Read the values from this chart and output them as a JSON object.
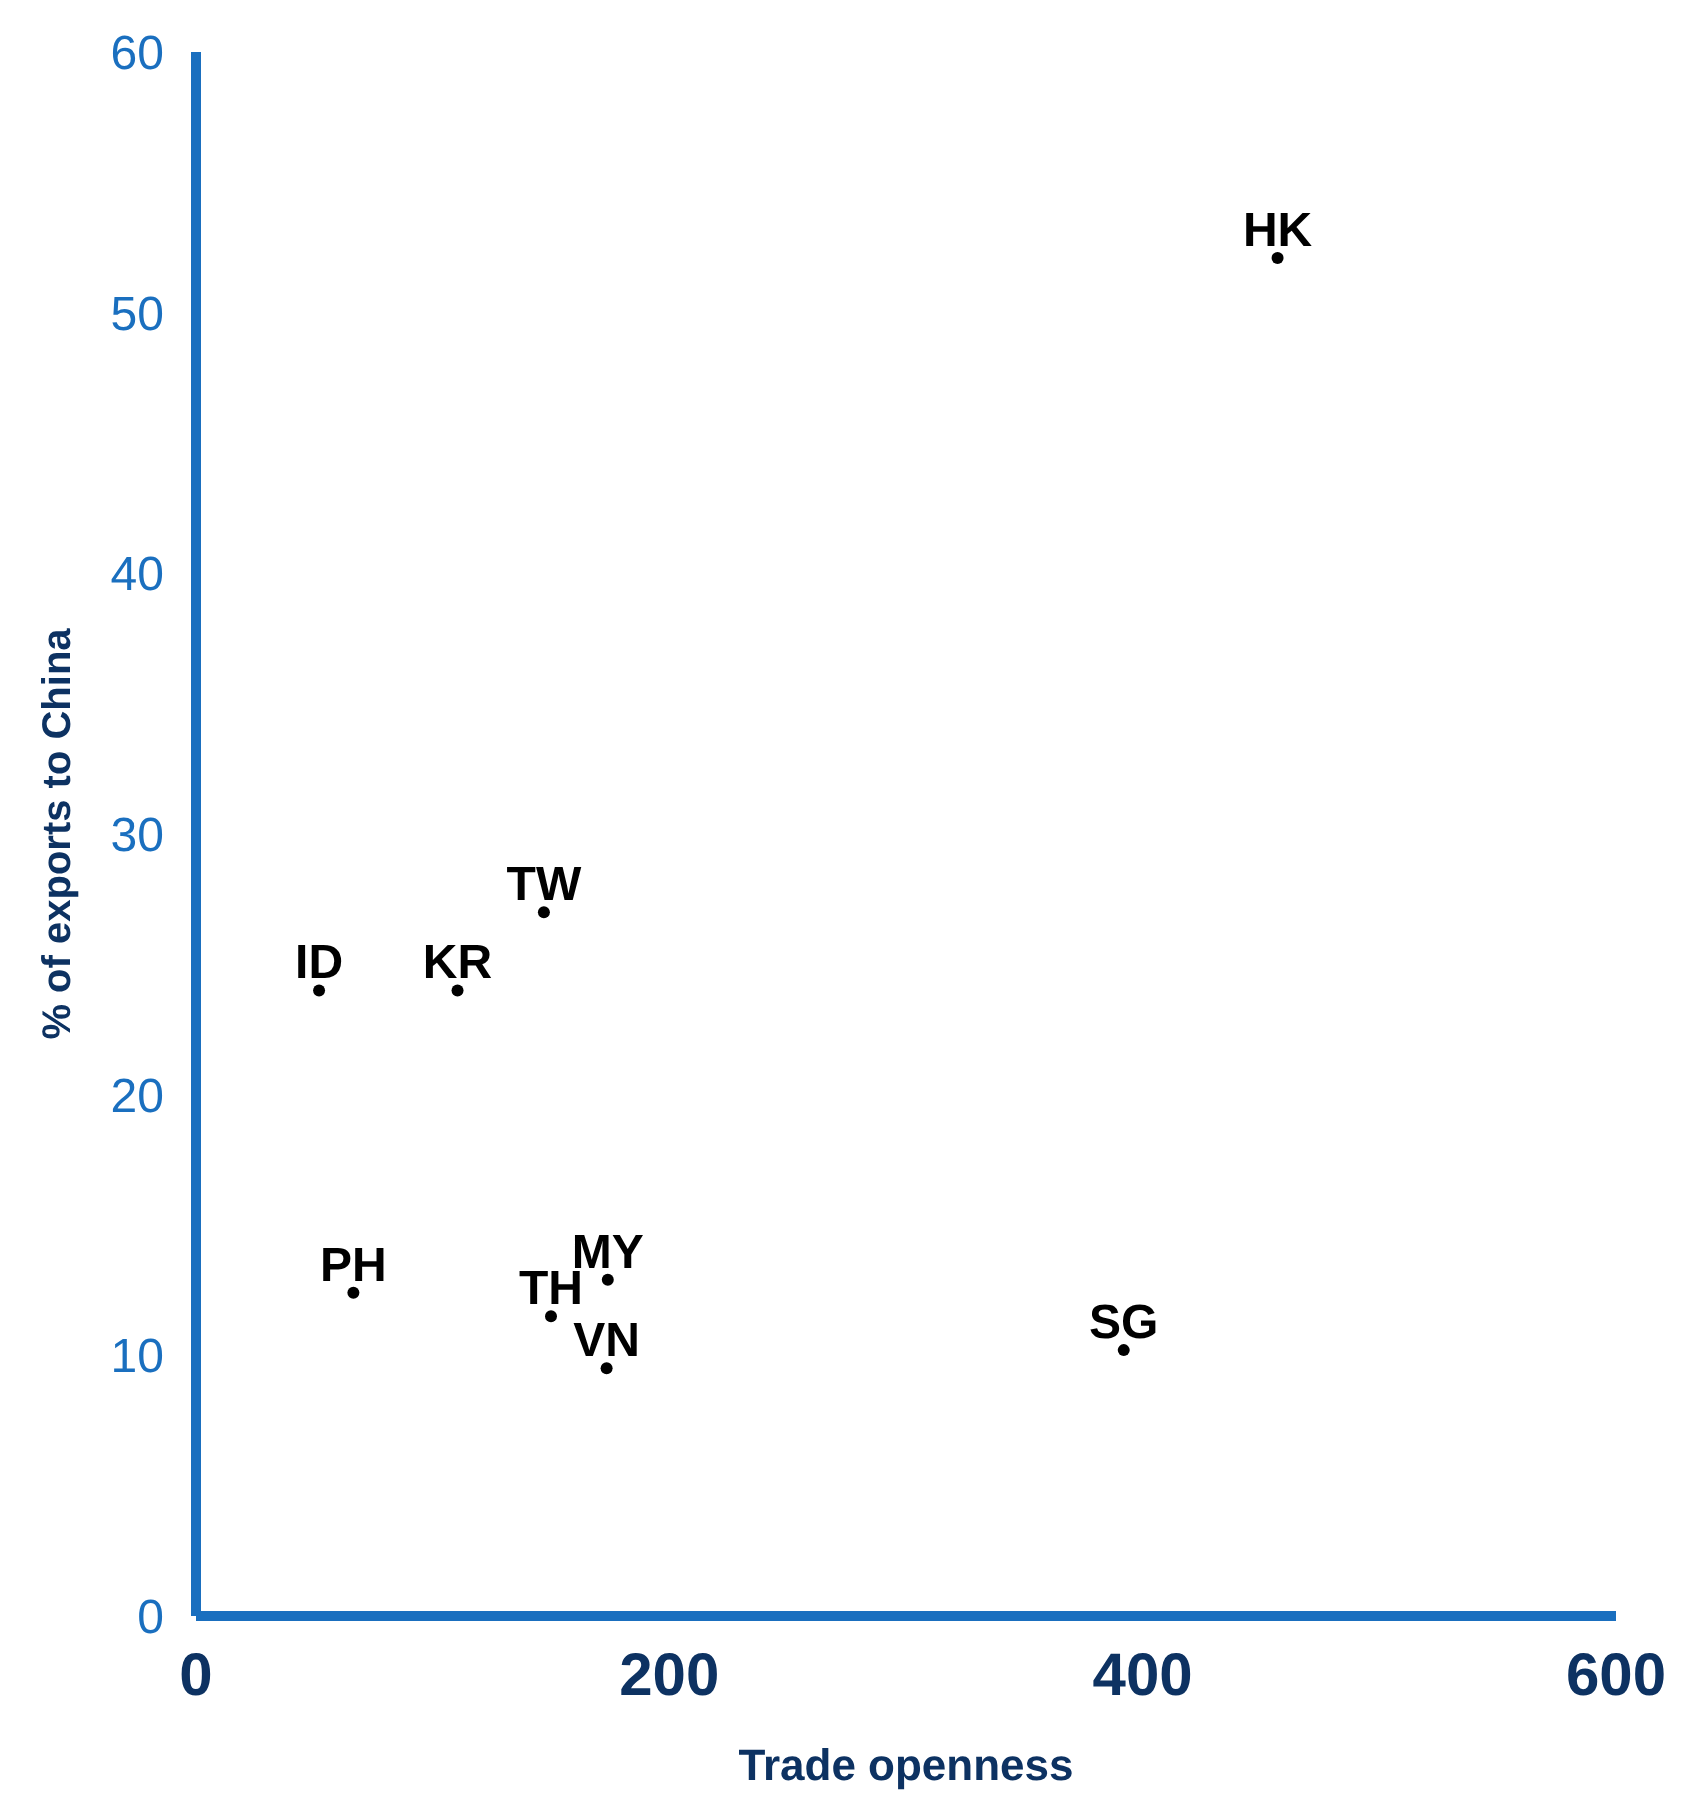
{
  "chart_data": {
    "type": "scatter",
    "xlabel": "Trade openness",
    "ylabel": "% of exports to China",
    "xlim": [
      0,
      600
    ],
    "xticks": [
      0,
      200,
      400,
      600
    ],
    "ylim": [
      0,
      60
    ],
    "yticks": [
      0,
      10,
      20,
      30,
      40,
      50,
      60
    ],
    "grid": false,
    "legend": false,
    "marker": "circle",
    "series": [
      {
        "color": "#000000",
        "x": [
          457,
          147,
          52,
          110.5,
          66.5,
          150,
          174,
          173.5,
          392
        ],
        "values": [
          52.1,
          27.0,
          24.0,
          24.0,
          12.4,
          11.5,
          12.9,
          9.5,
          10.2
        ],
        "value_labels": [
          "HK",
          "TW",
          "ID",
          "KR",
          "PH",
          "TH",
          "MY",
          "VN",
          "SG"
        ]
      }
    ]
  }
}
